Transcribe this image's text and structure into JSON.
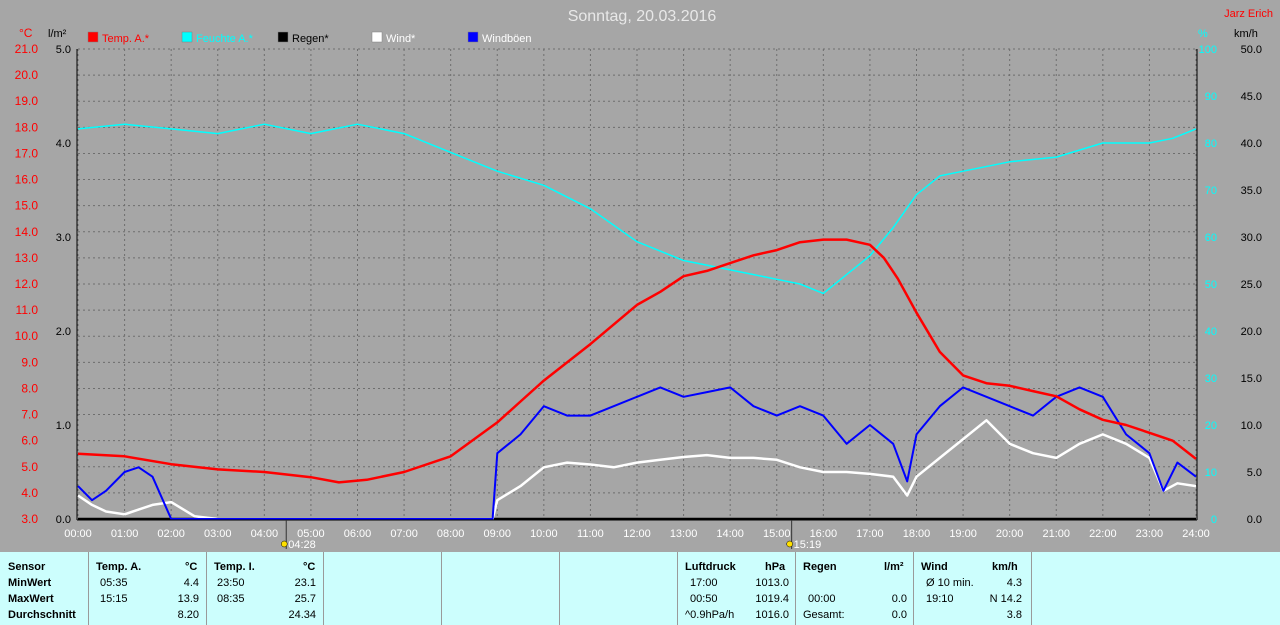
{
  "header": {
    "title": "Sonntag, 20.03.2016",
    "author": "Jarz Erich",
    "unit_temp": "°C",
    "unit_rain": "l/m²",
    "unit_humidity": "%",
    "unit_wind": "km/h"
  },
  "legend": [
    {
      "label": "Temp. A.*",
      "color": "#ff0000"
    },
    {
      "label": "Feuchte A.*",
      "color": "#00ffff"
    },
    {
      "label": "Regen*",
      "color": "#000000"
    },
    {
      "label": "Wind*",
      "color": "#ffffff"
    },
    {
      "label": "Windböen",
      "color": "#0000ff"
    }
  ],
  "markers": [
    {
      "label": "04:28",
      "time": 4.47
    },
    {
      "label": "15:19",
      "time": 15.32
    }
  ],
  "chart_data": {
    "type": "line",
    "title": "Sonntag, 20.03.2016",
    "x_ticks": [
      "00:00",
      "01:00",
      "02:00",
      "03:00",
      "04:00",
      "05:00",
      "06:00",
      "07:00",
      "08:00",
      "09:00",
      "10:00",
      "11:00",
      "12:00",
      "13:00",
      "14:00",
      "15:00",
      "16:00",
      "17:00",
      "18:00",
      "19:00",
      "20:00",
      "21:00",
      "22:00",
      "23:00",
      "24:00"
    ],
    "xlim": [
      0,
      24
    ],
    "grid": true,
    "axes": {
      "temp": {
        "label": "°C",
        "ylim": [
          3,
          21
        ],
        "ticks": [
          "21.0",
          "20.0",
          "19.0",
          "18.0",
          "17.0",
          "16.0",
          "15.0",
          "14.0",
          "13.0",
          "12.0",
          "11.0",
          "10.0",
          "9.0",
          "8.0",
          "7.0",
          "6.0",
          "5.0",
          "4.0",
          "3.0"
        ],
        "color": "#ff0000"
      },
      "rain": {
        "label": "l/m²",
        "ylim": [
          0,
          5
        ],
        "ticks": [
          "5.0",
          "4.0",
          "3.0",
          "2.0",
          "1.0",
          "0.0"
        ],
        "color": "#000000"
      },
      "humidity": {
        "label": "%",
        "ylim": [
          0,
          100
        ],
        "ticks": [
          "100",
          "90",
          "80",
          "70",
          "60",
          "50",
          "40",
          "30",
          "20",
          "10",
          "0"
        ],
        "color": "#00ffff"
      },
      "wind": {
        "label": "km/h",
        "ylim": [
          0,
          50
        ],
        "ticks": [
          "50.0",
          "45.0",
          "40.0",
          "35.0",
          "30.0",
          "25.0",
          "20.0",
          "15.0",
          "10.0",
          "5.0",
          "0.0"
        ],
        "color": "#000000"
      }
    },
    "series": [
      {
        "name": "Temp. A.*",
        "axis": "temp",
        "color": "#ff0000",
        "x": [
          0,
          1,
          2,
          3,
          4,
          5,
          5.6,
          6.2,
          7,
          8,
          9,
          9.5,
          10,
          11,
          12,
          12.5,
          13,
          13.5,
          14,
          14.5,
          15,
          15.5,
          16,
          16.5,
          17,
          17.3,
          17.6,
          18,
          18.5,
          19,
          19.5,
          20,
          20.5,
          21,
          21.5,
          22,
          22.5,
          23,
          23.5,
          24
        ],
        "y": [
          5.5,
          5.4,
          5.1,
          4.9,
          4.8,
          4.6,
          4.4,
          4.5,
          4.8,
          5.4,
          6.7,
          7.5,
          8.3,
          9.7,
          11.2,
          11.7,
          12.3,
          12.5,
          12.8,
          13.1,
          13.3,
          13.6,
          13.7,
          13.7,
          13.5,
          13.0,
          12.2,
          10.9,
          9.4,
          8.5,
          8.2,
          8.1,
          7.9,
          7.7,
          7.2,
          6.8,
          6.6,
          6.3,
          6.0,
          5.3
        ]
      },
      {
        "name": "Feuchte A.*",
        "axis": "humidity",
        "color": "#00ffff",
        "x": [
          0,
          1,
          2,
          3,
          4,
          5,
          6,
          7,
          8,
          9,
          10,
          11,
          12,
          13,
          14,
          15,
          15.5,
          16,
          16.5,
          17,
          17.5,
          18,
          18.5,
          19,
          20,
          21,
          22,
          23,
          23.5,
          24
        ],
        "y": [
          83,
          84,
          83,
          82,
          84,
          82,
          84,
          82,
          78,
          74,
          71,
          66,
          59,
          55,
          53,
          51,
          50,
          48,
          52,
          56,
          62,
          69,
          73,
          74,
          76,
          77,
          80,
          80,
          81,
          83
        ]
      },
      {
        "name": "Regen*",
        "axis": "rain",
        "color": "#000000",
        "x": [
          0,
          24
        ],
        "y": [
          0,
          0
        ]
      },
      {
        "name": "Wind*",
        "axis": "wind",
        "color": "#ffffff",
        "x": [
          0,
          0.3,
          0.6,
          1,
          1.3,
          1.6,
          2,
          2.5,
          3,
          4,
          5,
          6,
          7,
          8,
          8.9,
          9,
          9.5,
          10,
          10.5,
          11,
          11.5,
          12,
          12.5,
          13,
          13.5,
          14,
          14.5,
          15,
          15.5,
          16,
          16.5,
          17,
          17.5,
          17.8,
          18,
          18.5,
          19,
          19.5,
          20,
          20.5,
          21,
          21.5,
          22,
          22.5,
          23,
          23.3,
          23.6,
          24
        ],
        "y": [
          2.5,
          1.5,
          0.8,
          0.5,
          1,
          1.5,
          1.8,
          0.3,
          0,
          0,
          0,
          0,
          0,
          0,
          0,
          2,
          3.5,
          5.5,
          6,
          5.8,
          5.5,
          6,
          6.3,
          6.6,
          6.8,
          6.5,
          6.5,
          6.3,
          5.5,
          5,
          5,
          4.8,
          4.5,
          2.5,
          4.5,
          6.5,
          8.5,
          10.5,
          8,
          7,
          6.5,
          8,
          9,
          8,
          6.5,
          3,
          3.8,
          3.5
        ]
      },
      {
        "name": "Windböen",
        "axis": "wind",
        "color": "#0000ff",
        "x": [
          0,
          0.3,
          0.6,
          1,
          1.3,
          1.6,
          2,
          2.5,
          3,
          4,
          5,
          6,
          7,
          8,
          8.9,
          9,
          9.5,
          10,
          10.5,
          11,
          11.5,
          12,
          12.5,
          13,
          13.5,
          14,
          14.5,
          15,
          15.5,
          16,
          16.5,
          17,
          17.5,
          17.8,
          18,
          18.5,
          19,
          19.5,
          20,
          20.5,
          21,
          21.5,
          22,
          22.5,
          23,
          23.3,
          23.6,
          24
        ],
        "y": [
          3.5,
          2,
          3,
          5,
          5.5,
          4.5,
          0,
          0,
          0,
          0,
          0,
          0,
          0,
          0,
          0,
          7,
          9,
          12,
          11,
          11,
          12,
          13,
          14,
          13,
          13.5,
          14,
          12,
          11,
          12,
          11,
          8,
          10,
          8,
          4,
          9,
          12,
          14,
          13,
          12,
          11,
          13,
          14,
          13,
          9,
          7,
          3,
          6,
          4.5
        ]
      }
    ]
  },
  "stats": {
    "sensor": {
      "title": "Sensor",
      "rows": [
        "MinWert",
        "MaxWert",
        "Durchschnitt"
      ]
    },
    "temp_a": {
      "title": "Temp. A.",
      "unit": "°C",
      "times": [
        "05:35",
        "15:15",
        ""
      ],
      "values": [
        "4.4",
        "13.9",
        "8.20"
      ]
    },
    "temp_i": {
      "title": "Temp. I.",
      "unit": "°C",
      "times": [
        "23:50",
        "08:35",
        ""
      ],
      "values": [
        "23.1",
        "25.7",
        "24.34"
      ]
    },
    "pressure": {
      "title": "Luftdruck",
      "unit": "hPa",
      "times": [
        "17:00",
        "00:50",
        "^0.9hPa/h"
      ],
      "values": [
        "1013.0",
        "1019.4",
        "1016.0"
      ]
    },
    "rain": {
      "title": "Regen",
      "unit": "l/m²",
      "times": [
        "00:00",
        "Gesamt:"
      ],
      "values": [
        "0.0",
        "0.0"
      ]
    },
    "wind": {
      "title": "Wind",
      "unit": "km/h",
      "times": [
        "Ø 10 min.",
        "19:10",
        ""
      ],
      "values": [
        "4.3",
        "N 14.2",
        "3.8"
      ]
    }
  }
}
